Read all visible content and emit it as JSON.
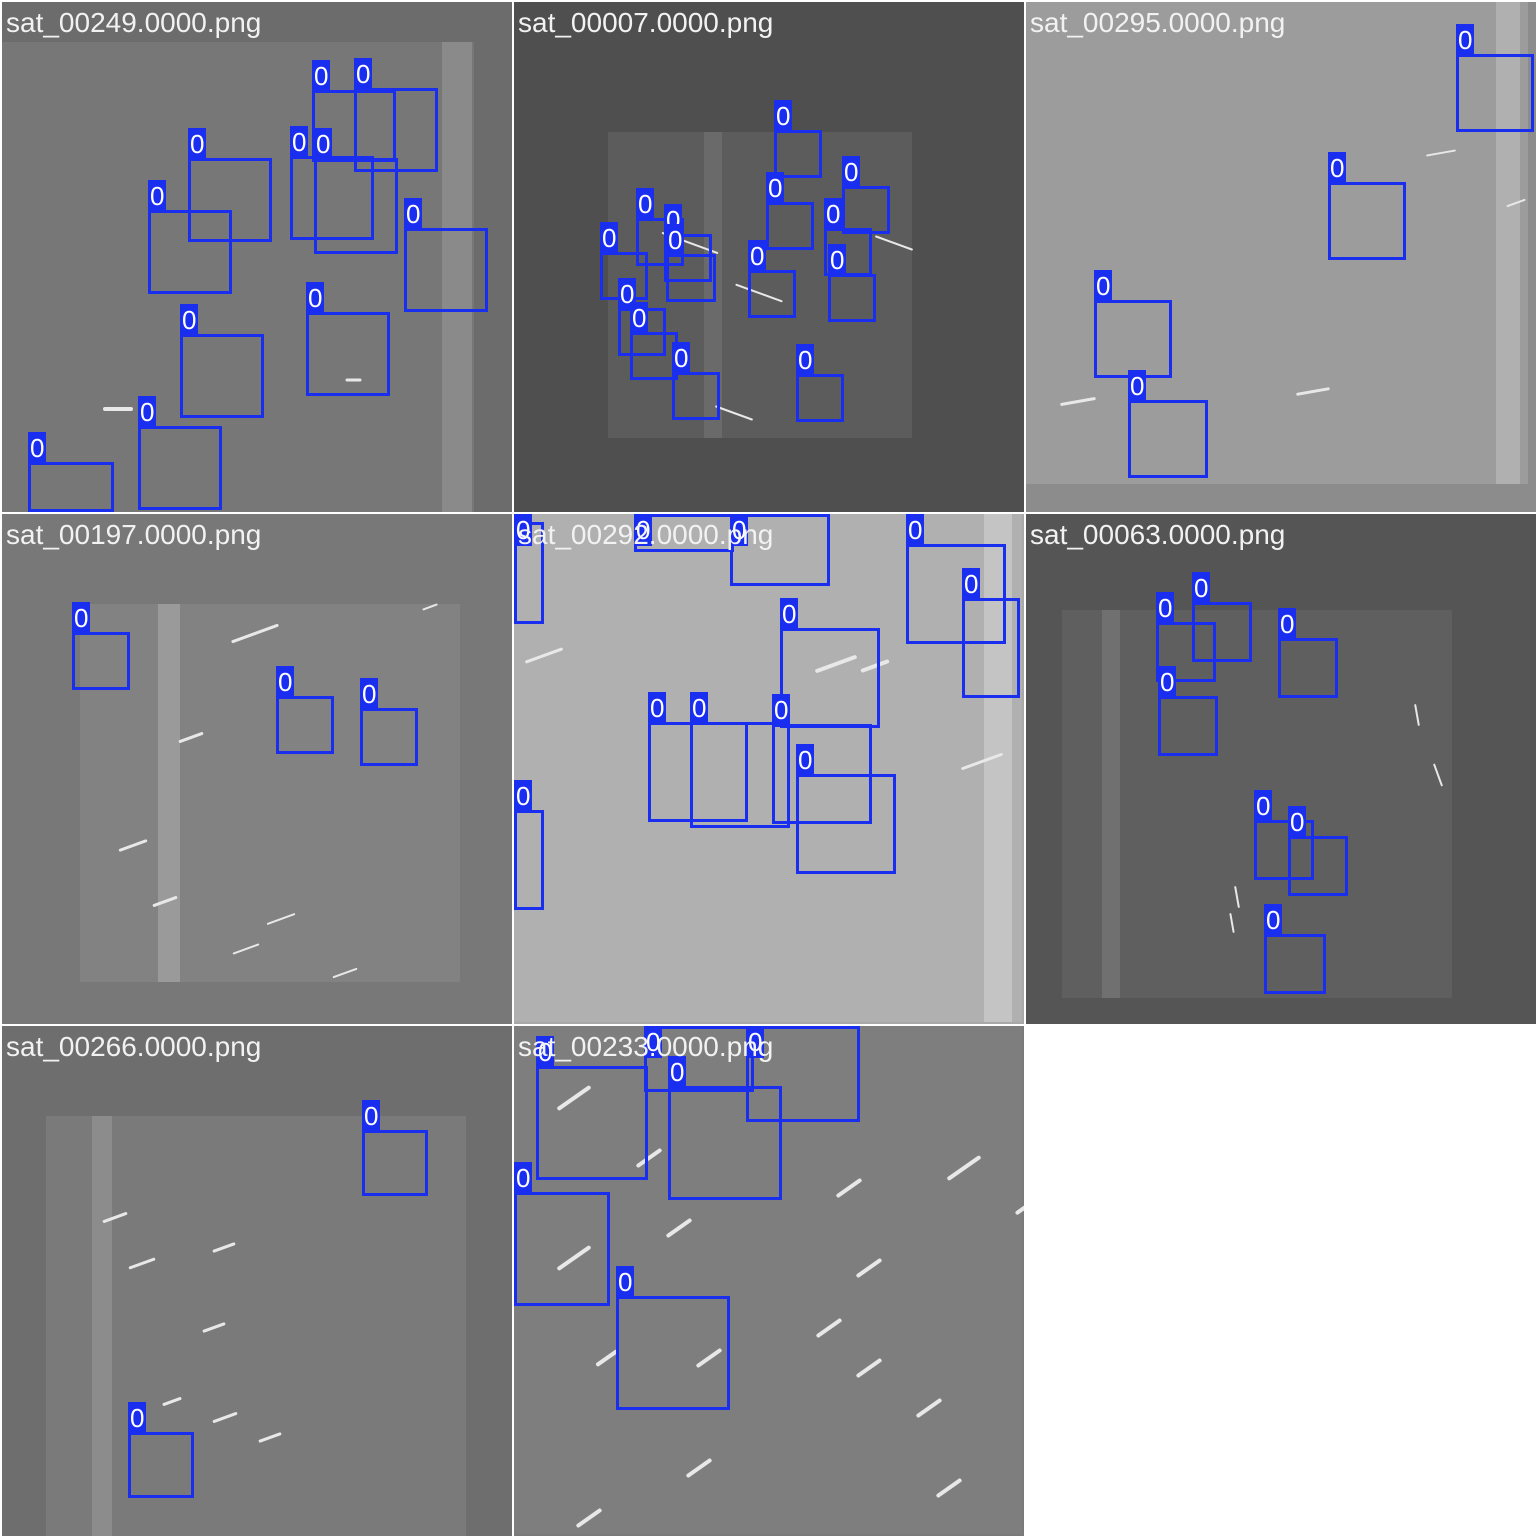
{
  "label_color": "#1a2ef0",
  "tiles": [
    {
      "name": "sat_00249.0000.png",
      "detections": 13,
      "class_label": "0"
    },
    {
      "name": "sat_00007.0000.png",
      "detections": 14,
      "class_label": "0"
    },
    {
      "name": "sat_00295.0000.png",
      "detections": 4,
      "class_label": "0"
    },
    {
      "name": "sat_00197.0000.png",
      "detections": 3,
      "class_label": "0"
    },
    {
      "name": "sat_00292.0000.png",
      "detections": 12,
      "class_label": "0"
    },
    {
      "name": "sat_00063.0000.png",
      "detections": 7,
      "class_label": "0"
    },
    {
      "name": "sat_00266.0000.png",
      "detections": 2,
      "class_label": "0"
    },
    {
      "name": "sat_00233.0000.png",
      "detections": 6,
      "class_label": "0"
    }
  ]
}
